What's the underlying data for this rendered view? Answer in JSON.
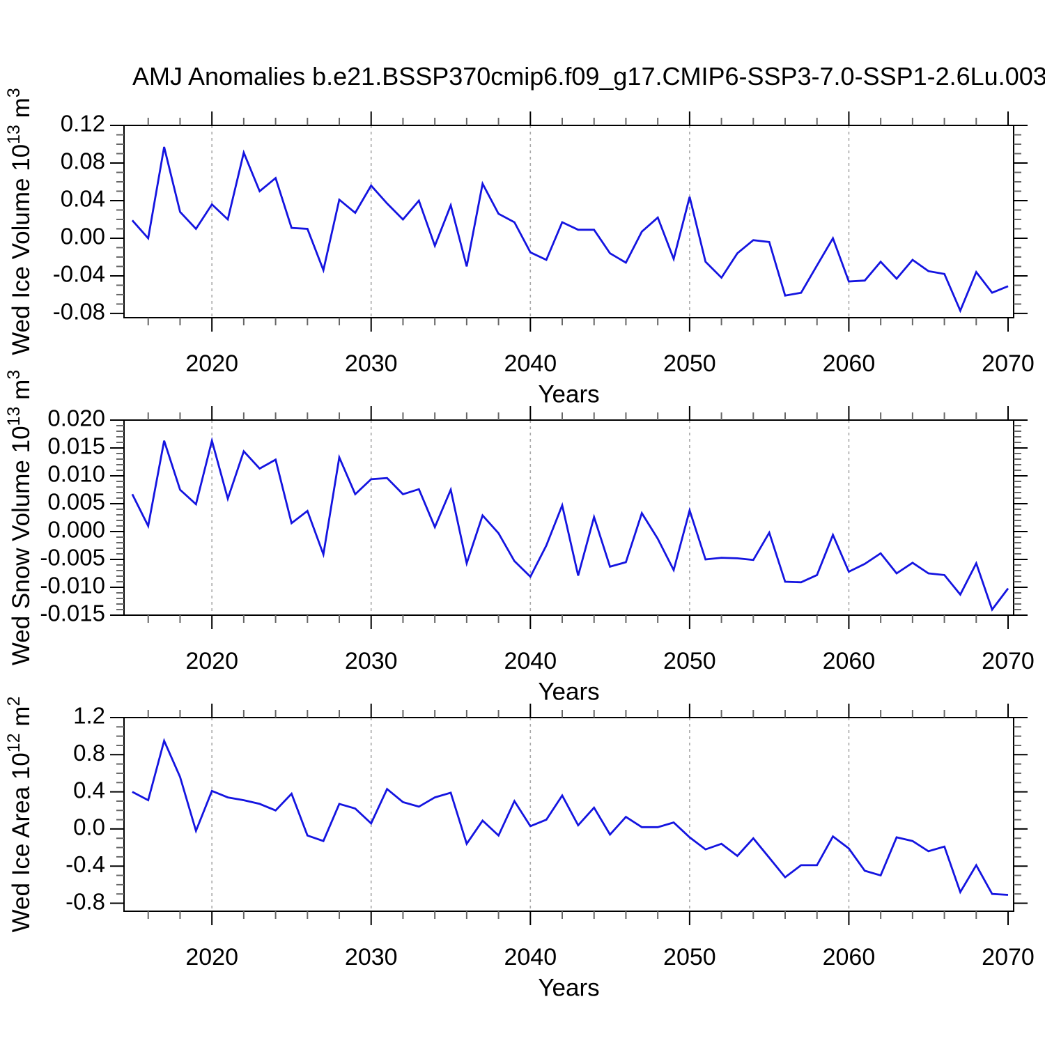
{
  "title": "AMJ Anomalies b.e21.BSSP370cmip6.f09_g17.CMIP6-SSP3-7.0-SSP1-2.6Lu.003",
  "styles": {
    "line_color": "#1414e0",
    "grid_color": "#a8a8a8",
    "axis_color": "#000000",
    "minor_tick_color": "#666666",
    "background": "#ffffff"
  },
  "years": [
    2015,
    2016,
    2017,
    2018,
    2019,
    2020,
    2021,
    2022,
    2023,
    2024,
    2025,
    2026,
    2027,
    2028,
    2029,
    2030,
    2031,
    2032,
    2033,
    2034,
    2035,
    2036,
    2037,
    2038,
    2039,
    2040,
    2041,
    2042,
    2043,
    2044,
    2045,
    2046,
    2047,
    2048,
    2049,
    2050,
    2051,
    2052,
    2053,
    2054,
    2055,
    2056,
    2057,
    2058,
    2059,
    2060,
    2061,
    2062,
    2063,
    2064,
    2065,
    2066,
    2067,
    2068,
    2069,
    2070
  ],
  "chart_data": [
    {
      "type": "line",
      "name": "wed-ice-volume",
      "ylabel": "Wed Ice Volume 10^13^ m^3^",
      "xlabel": "Years",
      "values": [
        0.019,
        0.0,
        0.097,
        0.028,
        0.01,
        0.036,
        0.02,
        0.091,
        0.05,
        0.064,
        0.011,
        0.01,
        -0.034,
        0.041,
        0.027,
        0.056,
        0.037,
        0.02,
        0.04,
        -0.008,
        0.035,
        -0.03,
        0.058,
        0.026,
        0.017,
        -0.015,
        -0.023,
        0.017,
        0.009,
        0.009,
        -0.016,
        -0.026,
        0.007,
        0.022,
        -0.022,
        0.044,
        -0.025,
        -0.042,
        -0.016,
        -0.002,
        -0.004,
        -0.061,
        -0.058,
        -0.029,
        0.0,
        -0.046,
        -0.045,
        -0.025,
        -0.043,
        -0.023,
        -0.035,
        -0.038,
        -0.077,
        -0.036,
        -0.058,
        -0.051
      ],
      "xlim": [
        2014.48,
        2070.35
      ],
      "ylim": [
        -0.0845,
        0.12
      ],
      "yticks": [
        0.12,
        0.08,
        0.04,
        0.0,
        -0.04,
        -0.08
      ],
      "ytick_decimals": 2,
      "yminor_step": 0.01,
      "xticks": [
        2020,
        2030,
        2040,
        2050,
        2060,
        2070
      ],
      "xminor_step": 2,
      "grid_x": [
        2020,
        2030,
        2040,
        2050,
        2060
      ],
      "grid": true,
      "legend": "none"
    },
    {
      "type": "line",
      "name": "wed-snow-volume",
      "ylabel": "Wed Snow Volume 10^13^ m^3^",
      "xlabel": "Years",
      "values": [
        0.0067,
        0.001,
        0.0163,
        0.0075,
        0.0049,
        0.0163,
        0.0059,
        0.0144,
        0.0113,
        0.0129,
        0.0015,
        0.0037,
        -0.0041,
        0.0133,
        0.0067,
        0.0094,
        0.0096,
        0.0067,
        0.0076,
        0.0008,
        0.0075,
        -0.0057,
        0.0029,
        -0.0003,
        -0.0053,
        -0.0081,
        -0.0025,
        0.0047,
        -0.0079,
        0.0026,
        -0.0063,
        -0.0055,
        0.0033,
        -0.0013,
        -0.0069,
        0.0038,
        -0.005,
        -0.0047,
        -0.0048,
        -0.0051,
        -0.0002,
        -0.009,
        -0.0091,
        -0.0078,
        -0.0006,
        -0.0072,
        -0.0058,
        -0.0039,
        -0.0075,
        -0.0056,
        -0.0075,
        -0.0078,
        -0.0113,
        -0.0057,
        -0.014,
        -0.0102
      ],
      "xlim": [
        2014.48,
        2070.35
      ],
      "ylim": [
        -0.015,
        0.02
      ],
      "yticks": [
        0.02,
        0.015,
        0.01,
        0.005,
        0.0,
        -0.005,
        -0.01,
        -0.015
      ],
      "ytick_decimals": 3,
      "yminor_step": 0.001,
      "xticks": [
        2020,
        2030,
        2040,
        2050,
        2060,
        2070
      ],
      "xminor_step": 2,
      "grid_x": [
        2020,
        2030,
        2040,
        2050,
        2060
      ],
      "grid": true,
      "legend": "none"
    },
    {
      "type": "line",
      "name": "wed-ice-area",
      "ylabel": "Wed Ice Area 10^12^ m^2^",
      "xlabel": "Years",
      "values": [
        0.4,
        0.31,
        0.95,
        0.56,
        -0.02,
        0.41,
        0.34,
        0.31,
        0.27,
        0.2,
        0.38,
        -0.07,
        -0.13,
        0.27,
        0.22,
        0.06,
        0.43,
        0.29,
        0.24,
        0.34,
        0.39,
        -0.16,
        0.09,
        -0.07,
        0.3,
        0.03,
        0.1,
        0.36,
        0.04,
        0.23,
        -0.06,
        0.13,
        0.02,
        0.02,
        0.07,
        -0.09,
        -0.22,
        -0.16,
        -0.29,
        -0.1,
        -0.31,
        -0.52,
        -0.39,
        -0.39,
        -0.08,
        -0.21,
        -0.45,
        -0.5,
        -0.09,
        -0.13,
        -0.24,
        -0.19,
        -0.68,
        -0.39,
        -0.7,
        -0.71
      ],
      "xlim": [
        2014.48,
        2070.35
      ],
      "ylim": [
        -0.886,
        1.2
      ],
      "yticks": [
        1.2,
        0.8,
        0.4,
        0.0,
        -0.4,
        -0.8
      ],
      "ytick_decimals": 1,
      "yminor_step": 0.1,
      "xticks": [
        2020,
        2030,
        2040,
        2050,
        2060,
        2070
      ],
      "xminor_step": 2,
      "grid_x": [
        2020,
        2030,
        2040,
        2050,
        2060
      ],
      "grid": true,
      "legend": "none"
    }
  ]
}
